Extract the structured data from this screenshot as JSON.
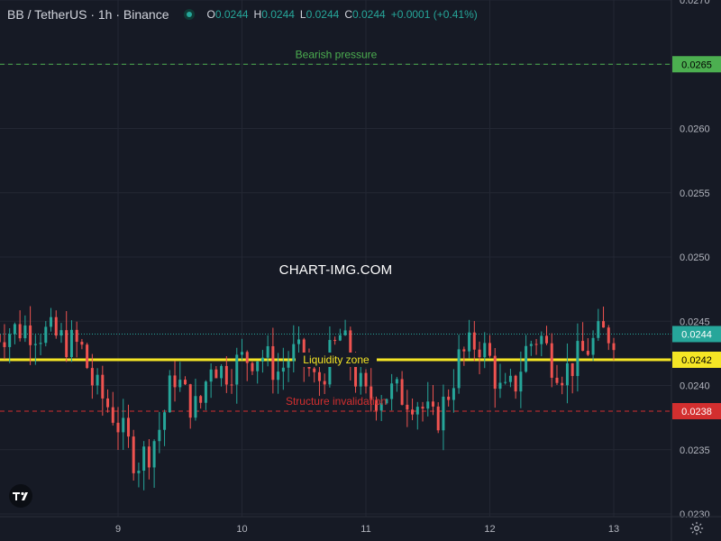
{
  "header": {
    "symbol": "BB / TetherUS · 1h · Binance",
    "ohlc": {
      "o_label": "O",
      "o": "0.0244",
      "h_label": "H",
      "h": "0.0244",
      "l_label": "L",
      "l": "0.0244",
      "c_label": "C",
      "c": "0.0244",
      "change": "+0.0001 (+0.41%)"
    }
  },
  "watermark": "CHART-IMG.COM",
  "colors": {
    "background": "#161a25",
    "grid": "#232733",
    "up": "#26a69a",
    "down": "#ef5350",
    "bearish": "#4caf50",
    "liquidity": "#f5e625",
    "invalidation": "#d32f2f",
    "current": "#26a69a"
  },
  "chart_data": {
    "type": "candlestick",
    "y_axis": {
      "min": 0.023,
      "max": 0.027,
      "ticks": [
        "0.0230",
        "0.0235",
        "0.0240",
        "0.0245",
        "0.0250",
        "0.0255",
        "0.0260",
        "0.0265",
        "0.0270"
      ]
    },
    "x_axis": {
      "start_day": 8.0,
      "end_day": 13.5,
      "ticks": [
        {
          "label": "9",
          "day": 9
        },
        {
          "label": "10",
          "day": 10
        },
        {
          "label": "11",
          "day": 11
        },
        {
          "label": "12",
          "day": 12
        },
        {
          "label": "13",
          "day": 13
        }
      ]
    },
    "grid": true,
    "levels": [
      {
        "name": "Bearish pressure",
        "price": 0.0265,
        "price_label": "0.0265",
        "style": "dashed",
        "color": "#4caf50",
        "label_color": "#4caf50"
      },
      {
        "name": "Liquidity zone",
        "price": 0.0242,
        "price_label": "0.0242",
        "style": "solid",
        "color": "#f5e625",
        "label_color": "#f5e625"
      },
      {
        "name": "Structure invalidation",
        "price": 0.0238,
        "price_label": "0.0238",
        "style": "dashed",
        "color": "#d32f2f",
        "label_color": "#d32f2f"
      }
    ],
    "current_price": {
      "price": 0.0244,
      "label": "0.0244"
    },
    "candles_hint": "approximate price path read from the chart",
    "path": [
      [
        8.0,
        0.0244
      ],
      [
        8.25,
        0.02445
      ],
      [
        8.45,
        0.0244
      ],
      [
        8.55,
        0.02435
      ],
      [
        8.7,
        0.0243
      ],
      [
        8.8,
        0.024
      ],
      [
        8.95,
        0.0238
      ],
      [
        9.05,
        0.0236
      ],
      [
        9.15,
        0.0234
      ],
      [
        9.25,
        0.0235
      ],
      [
        9.35,
        0.0237
      ],
      [
        9.45,
        0.0241
      ],
      [
        9.55,
        0.0239
      ],
      [
        9.65,
        0.0238
      ],
      [
        9.75,
        0.0242
      ],
      [
        9.85,
        0.0241
      ],
      [
        10.0,
        0.0242
      ],
      [
        10.15,
        0.02425
      ],
      [
        10.3,
        0.0241
      ],
      [
        10.4,
        0.02425
      ],
      [
        10.5,
        0.0242
      ],
      [
        10.6,
        0.024
      ],
      [
        10.7,
        0.0242
      ],
      [
        10.8,
        0.0244
      ],
      [
        10.9,
        0.0241
      ],
      [
        11.0,
        0.0239
      ],
      [
        11.2,
        0.02395
      ],
      [
        11.4,
        0.0239
      ],
      [
        11.55,
        0.0237
      ],
      [
        11.65,
        0.0239
      ],
      [
        11.75,
        0.0242
      ],
      [
        11.9,
        0.02435
      ],
      [
        12.0,
        0.0242
      ],
      [
        12.1,
        0.0239
      ],
      [
        12.2,
        0.024
      ],
      [
        12.3,
        0.0243
      ],
      [
        12.4,
        0.0244
      ],
      [
        12.5,
        0.0242
      ],
      [
        12.6,
        0.0241
      ],
      [
        12.7,
        0.0242
      ],
      [
        12.8,
        0.0243
      ],
      [
        12.9,
        0.0244
      ],
      [
        13.0,
        0.0244
      ]
    ]
  }
}
